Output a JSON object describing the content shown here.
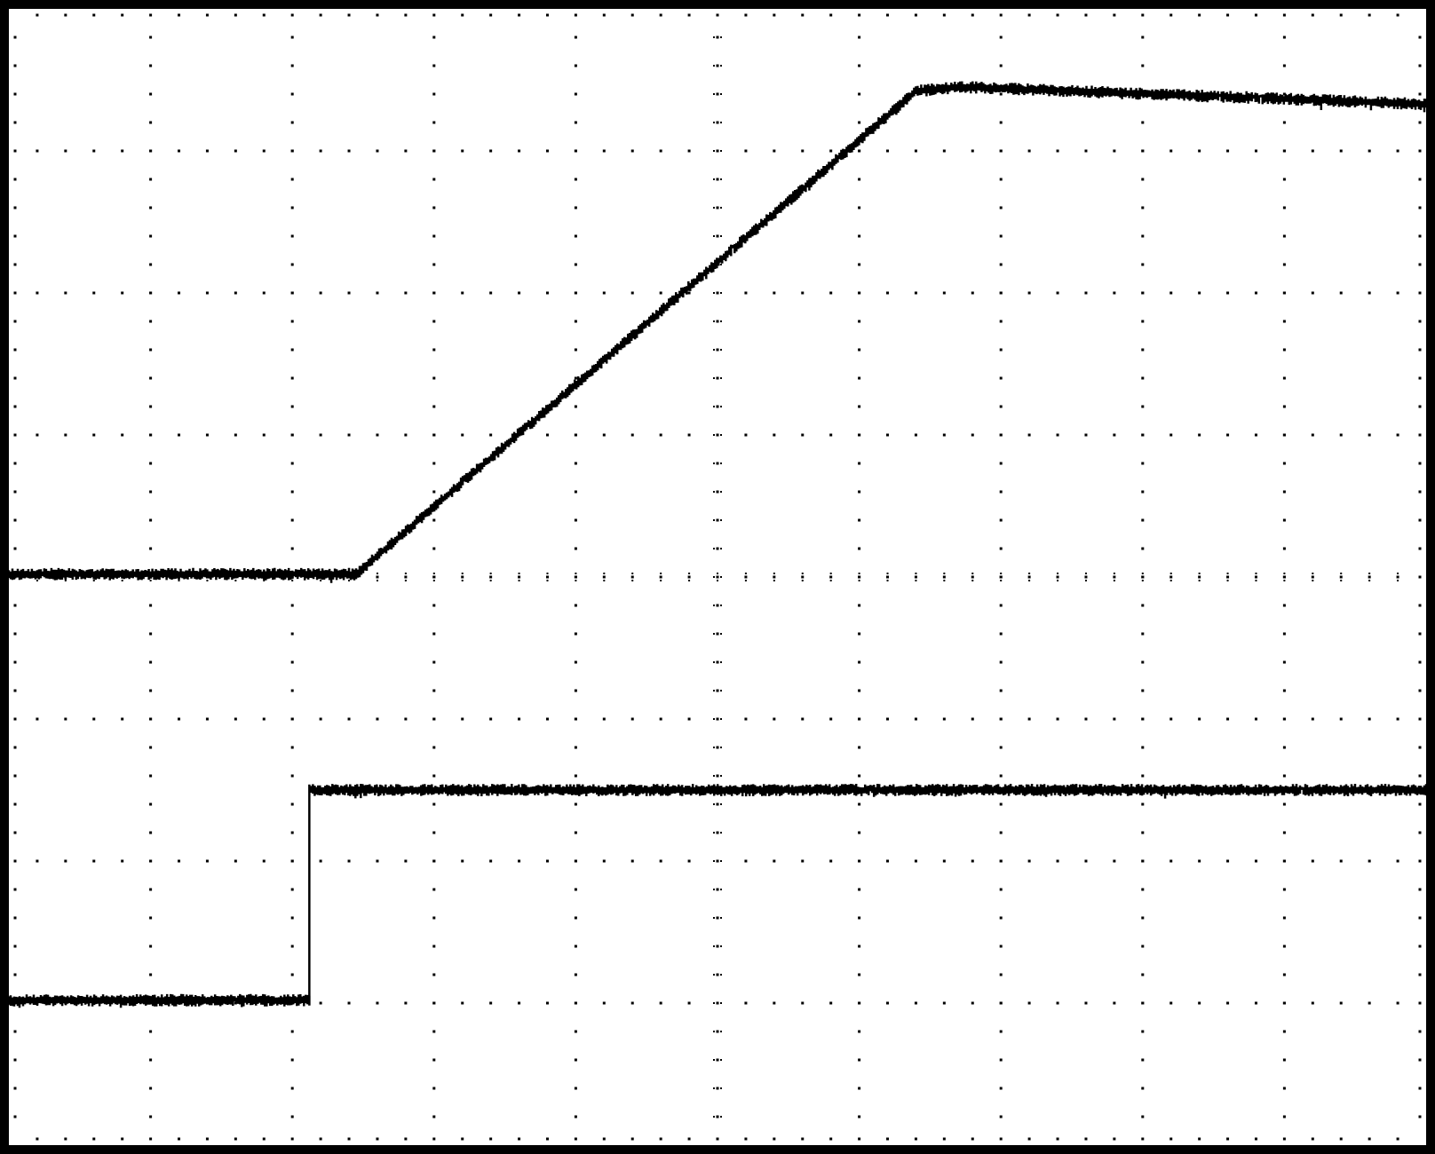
{
  "chart_data": {
    "type": "line",
    "title": "",
    "xlabel": "",
    "ylabel": "",
    "xlim": [
      0,
      10
    ],
    "ylim": [
      -4,
      4
    ],
    "grid": true,
    "grid_style": "dotted",
    "x_divisions": 10,
    "y_divisions": 8,
    "colors": {
      "trace": "#000000",
      "grid": "#000000",
      "background": "#ffffff",
      "frame": "#000000"
    },
    "series": [
      {
        "x": [
          0,
          2.45,
          6.4,
          6.7,
          10
        ],
        "y": [
          0.02,
          0.02,
          3.42,
          3.45,
          3.33
        ]
      },
      {
        "x": [
          0,
          2.12,
          2.12,
          10
        ],
        "y": [
          -2.98,
          -2.98,
          -1.5,
          -1.5
        ]
      }
    ]
  }
}
